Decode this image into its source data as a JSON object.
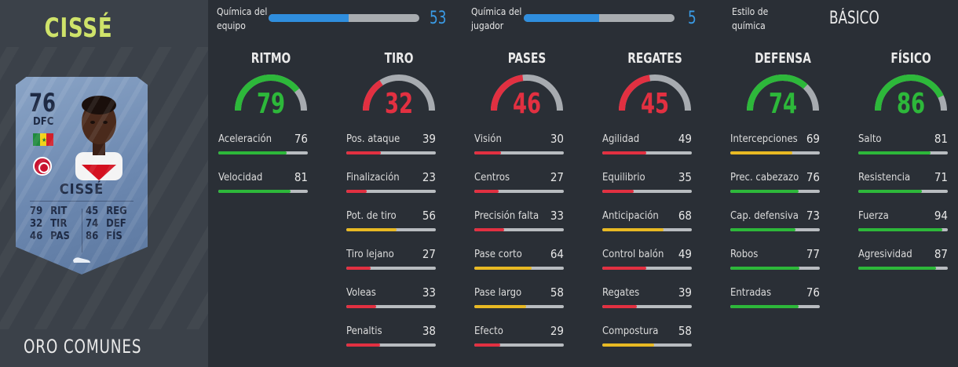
{
  "player": {
    "name": "CISSÉ",
    "quality": "ORO COMUNES",
    "card": {
      "rating": "76",
      "position": "DFC",
      "name": "CISSÉ",
      "stats": [
        {
          "value": "79",
          "label": "RIT"
        },
        {
          "value": "45",
          "label": "REG"
        },
        {
          "value": "32",
          "label": "TIR"
        },
        {
          "value": "74",
          "label": "DEF"
        },
        {
          "value": "46",
          "label": "PAS"
        },
        {
          "value": "86",
          "label": "FÍS"
        }
      ],
      "flag_colors": [
        "#1f8a3d",
        "#f2d21a",
        "#d21f2a"
      ]
    }
  },
  "chemistry": {
    "team_label_1": "Química del",
    "team_label_2": "equipo",
    "team_value": "53",
    "team_fraction": 0.53,
    "player_label_1": "Química del",
    "player_label_2": "jugador",
    "player_value": "5",
    "player_fraction": 0.5,
    "style_label_1": "Estilo de",
    "style_label_2": "química",
    "style_value": "BÁSICO"
  },
  "colors": {
    "green": "#2db83a",
    "yellow": "#e8b923",
    "red": "#e23041",
    "grey": "#a7abb0",
    "accent_blue": "#2f8ede"
  },
  "categories": [
    {
      "title": "RITMO",
      "value": 79,
      "attrs": [
        {
          "label": "Aceleración",
          "value": 76
        },
        {
          "label": "Velocidad",
          "value": 81
        }
      ]
    },
    {
      "title": "TIRO",
      "value": 32,
      "attrs": [
        {
          "label": "Pos. ataque",
          "value": 39
        },
        {
          "label": "Finalización",
          "value": 23
        },
        {
          "label": "Pot. de tiro",
          "value": 56
        },
        {
          "label": "Tiro lejano",
          "value": 27
        },
        {
          "label": "Voleas",
          "value": 33
        },
        {
          "label": "Penaltis",
          "value": 38
        }
      ]
    },
    {
      "title": "PASES",
      "value": 46,
      "attrs": [
        {
          "label": "Visión",
          "value": 30
        },
        {
          "label": "Centros",
          "value": 27
        },
        {
          "label": "Precisión falta",
          "value": 33
        },
        {
          "label": "Pase corto",
          "value": 64
        },
        {
          "label": "Pase largo",
          "value": 58
        },
        {
          "label": "Efecto",
          "value": 29
        }
      ]
    },
    {
      "title": "REGATES",
      "value": 45,
      "attrs": [
        {
          "label": "Agilidad",
          "value": 49
        },
        {
          "label": "Equilibrio",
          "value": 35
        },
        {
          "label": "Anticipación",
          "value": 68
        },
        {
          "label": "Control balón",
          "value": 49
        },
        {
          "label": "Regates",
          "value": 39
        },
        {
          "label": "Compostura",
          "value": 58
        }
      ]
    },
    {
      "title": "DEFENSA",
      "value": 74,
      "attrs": [
        {
          "label": "Intercepciones",
          "value": 69
        },
        {
          "label": "Prec. cabezazo",
          "value": 76
        },
        {
          "label": "Cap. defensiva",
          "value": 73
        },
        {
          "label": "Robos",
          "value": 77
        },
        {
          "label": "Entradas",
          "value": 76
        }
      ]
    },
    {
      "title": "FÍSICO",
      "value": 86,
      "attrs": [
        {
          "label": "Salto",
          "value": 81
        },
        {
          "label": "Resistencia",
          "value": 71
        },
        {
          "label": "Fuerza",
          "value": 94
        },
        {
          "label": "Agresividad",
          "value": 87
        }
      ]
    }
  ]
}
